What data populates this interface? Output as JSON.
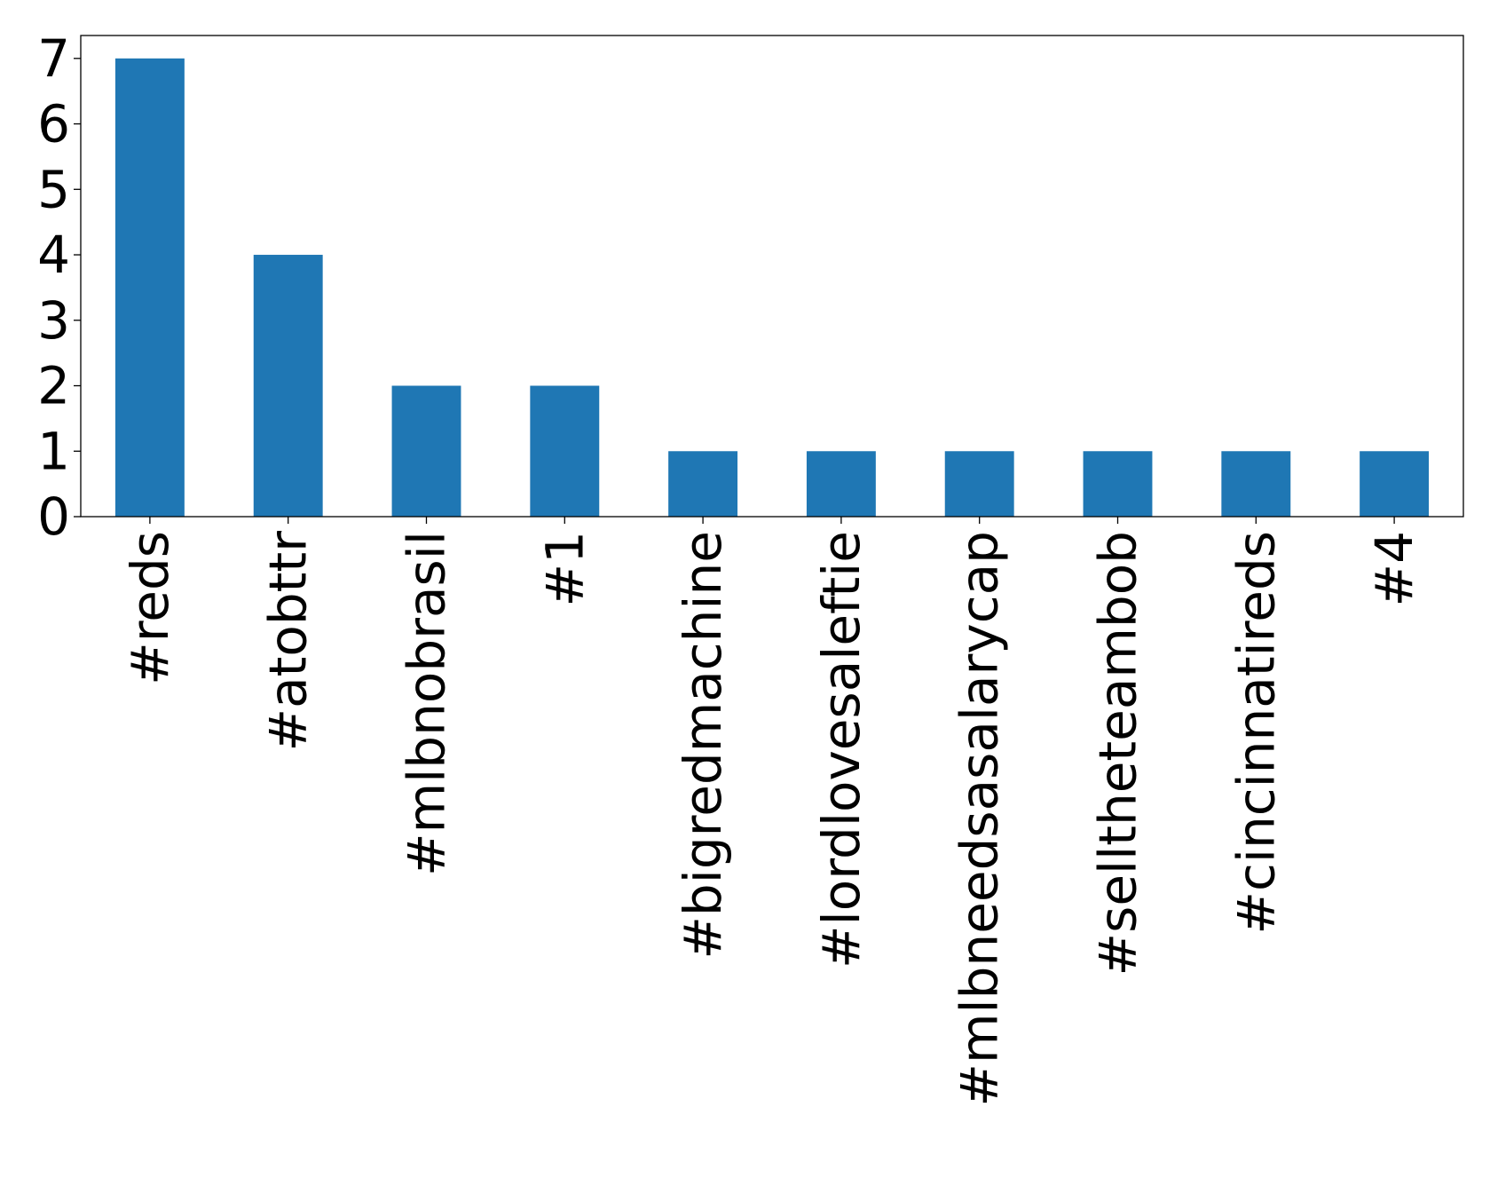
{
  "chart_data": {
    "type": "bar",
    "title": "",
    "xlabel": "",
    "ylabel": "",
    "categories": [
      "#reds",
      "#atobttr",
      "#mlbnobrasil",
      "#1",
      "#bigredmachine",
      "#lordlovesaleftie",
      "#mlbneedsasalarycap",
      "#selltheteambob",
      "#cincinnatireds",
      "#4"
    ],
    "values": [
      7,
      4,
      2,
      2,
      1,
      1,
      1,
      1,
      1,
      1
    ],
    "yticks": [
      "0",
      "1",
      "2",
      "3",
      "4",
      "5",
      "6",
      "7"
    ],
    "ylim": [
      0,
      7.35
    ],
    "grid": false,
    "legend": "none",
    "bar_color": "#1f77b4"
  }
}
